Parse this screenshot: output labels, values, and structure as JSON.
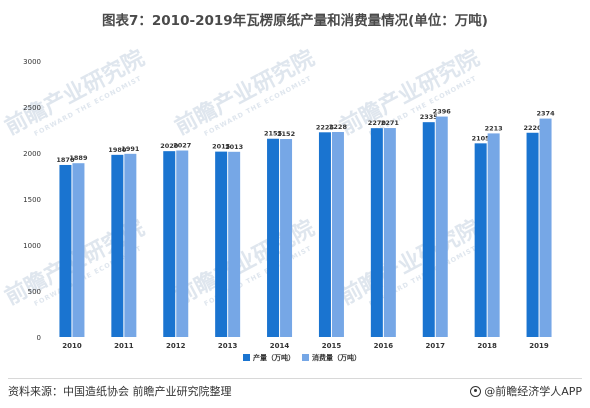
{
  "title": "图表7：2010-2019年瓦楞原纸产量和消费量情况(单位：万吨)",
  "footer": {
    "source": "资料来源：中国造纸协会 前瞻产业研究院整理",
    "brand": "@前瞻经济学人APP",
    "brand_icon": "fox-logo-icon"
  },
  "watermark": {
    "text": "前瞻产业研究院",
    "subtext": "FORWARD THE ECONOMIST"
  },
  "colors": {
    "production": "#1a74d0",
    "consumption": "#76a7e6",
    "axis_text": "#333333",
    "value_text": "#333333",
    "watermark": "#dfe6ee"
  },
  "chart_data": {
    "type": "bar",
    "categories": [
      "2010",
      "2011",
      "2012",
      "2013",
      "2014",
      "2015",
      "2016",
      "2017",
      "2018",
      "2019"
    ],
    "series": [
      {
        "name": "产量（万吨）",
        "values": [
          1870,
          1980,
          2020,
          2015,
          2155,
          2225,
          2270,
          2335,
          2105,
          2220
        ]
      },
      {
        "name": "消费量（万吨）",
        "values": [
          1889,
          1991,
          2027,
          2013,
          2152,
          2228,
          2271,
          2396,
          2213,
          2374
        ]
      }
    ],
    "ylim": [
      0,
      3000
    ],
    "yticks": [
      "0",
      "500",
      "1000",
      "1500",
      "2000",
      "2500",
      "3000"
    ],
    "legend": "bottom-center",
    "grid": false,
    "xlabel": "",
    "ylabel": ""
  }
}
